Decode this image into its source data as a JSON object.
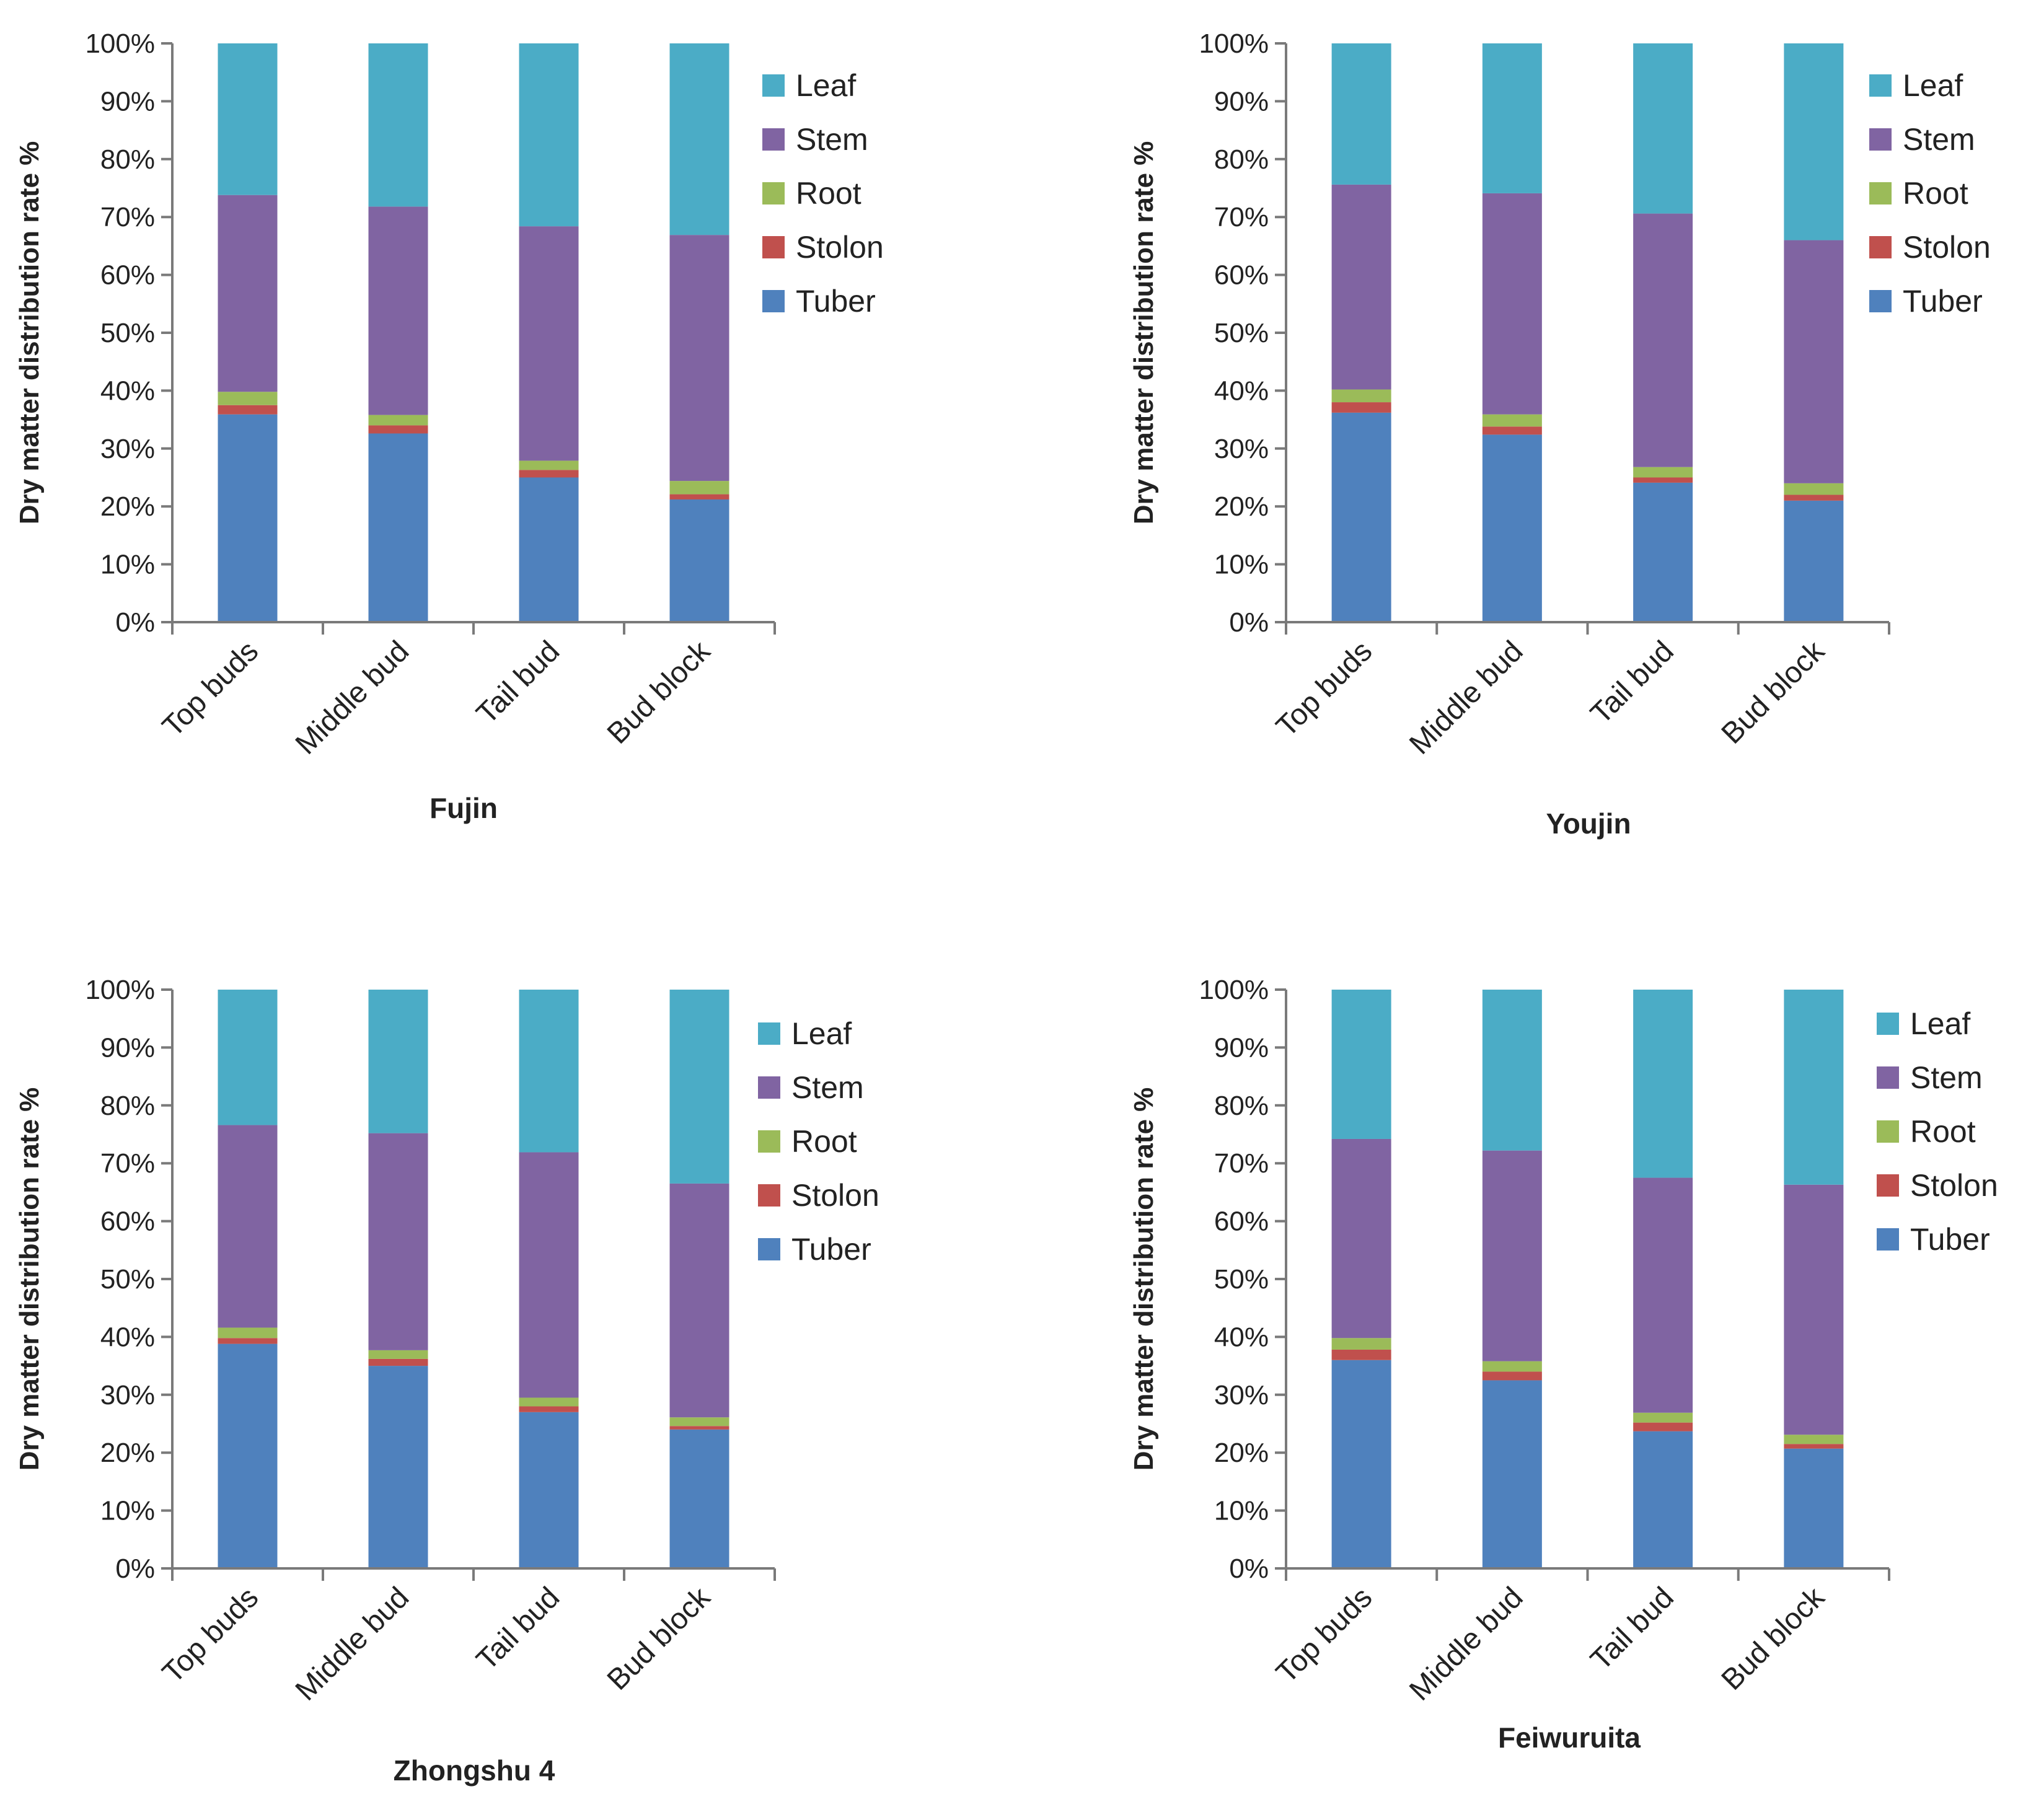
{
  "chart_data": [
    {
      "type": "bar",
      "stacked": true,
      "title": "Fujin",
      "ylabel": "Dry matter distribution rate %",
      "xlabel": "Fujin",
      "ylim": [
        0,
        100
      ],
      "yticks": [
        "0%",
        "10%",
        "20%",
        "30%",
        "40%",
        "50%",
        "60%",
        "70%",
        "80%",
        "90%",
        "100%"
      ],
      "categories": [
        "Top buds",
        "Middle bud",
        "Tail bud",
        "Bud block"
      ],
      "legend_position": "right",
      "series": [
        {
          "name": "Tuber",
          "values": [
            35.9,
            32.6,
            25.0,
            21.2
          ]
        },
        {
          "name": "Stolon",
          "values": [
            1.6,
            1.4,
            1.3,
            0.9
          ]
        },
        {
          "name": "Root",
          "values": [
            2.3,
            1.8,
            1.6,
            2.3
          ]
        },
        {
          "name": "Stem",
          "values": [
            34.0,
            36.0,
            40.5,
            42.5
          ]
        },
        {
          "name": "Leaf",
          "values": [
            26.2,
            28.2,
            31.6,
            33.1
          ]
        }
      ]
    },
    {
      "type": "bar",
      "stacked": true,
      "title": "Youjin",
      "ylabel": "Dry matter distribution rate %",
      "xlabel": "Youjin",
      "ylim": [
        0,
        100
      ],
      "yticks": [
        "0%",
        "10%",
        "20%",
        "30%",
        "40%",
        "50%",
        "60%",
        "70%",
        "80%",
        "90%",
        "100%"
      ],
      "categories": [
        "Top buds",
        "Middle bud",
        "Tail bud",
        "Bud block"
      ],
      "legend_position": "right",
      "series": [
        {
          "name": "Tuber",
          "values": [
            36.2,
            32.4,
            24.1,
            21.0
          ]
        },
        {
          "name": "Stolon",
          "values": [
            1.8,
            1.4,
            0.9,
            1.0
          ]
        },
        {
          "name": "Root",
          "values": [
            2.2,
            2.1,
            1.8,
            2.0
          ]
        },
        {
          "name": "Stem",
          "values": [
            35.4,
            38.2,
            43.8,
            42.0
          ]
        },
        {
          "name": "Leaf",
          "values": [
            24.4,
            25.9,
            29.4,
            34.0
          ]
        }
      ]
    },
    {
      "type": "bar",
      "stacked": true,
      "title": "Zhongshu 4",
      "ylabel": "Dry matter distribution rate %",
      "xlabel": "Zhongshu 4",
      "ylim": [
        0,
        100
      ],
      "yticks": [
        "0%",
        "10%",
        "20%",
        "30%",
        "40%",
        "50%",
        "60%",
        "70%",
        "80%",
        "90%",
        "100%"
      ],
      "categories": [
        "Top buds",
        "Middle bud",
        "Tail bud",
        "Bud block"
      ],
      "legend_position": "right",
      "series": [
        {
          "name": "Tuber",
          "values": [
            38.8,
            35.0,
            27.0,
            24.0
          ]
        },
        {
          "name": "Stolon",
          "values": [
            1.0,
            1.2,
            1.0,
            0.6
          ]
        },
        {
          "name": "Root",
          "values": [
            1.8,
            1.5,
            1.5,
            1.5
          ]
        },
        {
          "name": "Stem",
          "values": [
            35.0,
            37.5,
            42.4,
            40.4
          ]
        },
        {
          "name": "Leaf",
          "values": [
            23.4,
            24.8,
            28.1,
            33.5
          ]
        }
      ]
    },
    {
      "type": "bar",
      "stacked": true,
      "title": "Feiwuruita",
      "ylabel": "Dry matter distribution rate %",
      "xlabel": "Feiwuruita",
      "ylim": [
        0,
        100
      ],
      "yticks": [
        "0%",
        "10%",
        "20%",
        "30%",
        "40%",
        "50%",
        "60%",
        "70%",
        "80%",
        "90%",
        "100%"
      ],
      "categories": [
        "Top buds",
        "Middle bud",
        "Tail bud",
        "Bud block"
      ],
      "legend_position": "right",
      "series": [
        {
          "name": "Tuber",
          "values": [
            36.0,
            32.5,
            23.7,
            20.7
          ]
        },
        {
          "name": "Stolon",
          "values": [
            1.8,
            1.5,
            1.5,
            0.8
          ]
        },
        {
          "name": "Root",
          "values": [
            2.0,
            1.8,
            1.7,
            1.6
          ]
        },
        {
          "name": "Stem",
          "values": [
            34.4,
            36.4,
            40.6,
            43.2
          ]
        },
        {
          "name": "Leaf",
          "values": [
            25.8,
            27.8,
            32.5,
            33.7
          ]
        }
      ]
    }
  ],
  "colors": {
    "Tuber": "#4f81bd",
    "Stolon": "#c0504d",
    "Root": "#9bbb59",
    "Stem": "#8064a2",
    "Leaf": "#4bacc6",
    "axis": "#7a7a7a"
  },
  "legend_order": [
    "Leaf",
    "Stem",
    "Root",
    "Stolon",
    "Tuber"
  ]
}
